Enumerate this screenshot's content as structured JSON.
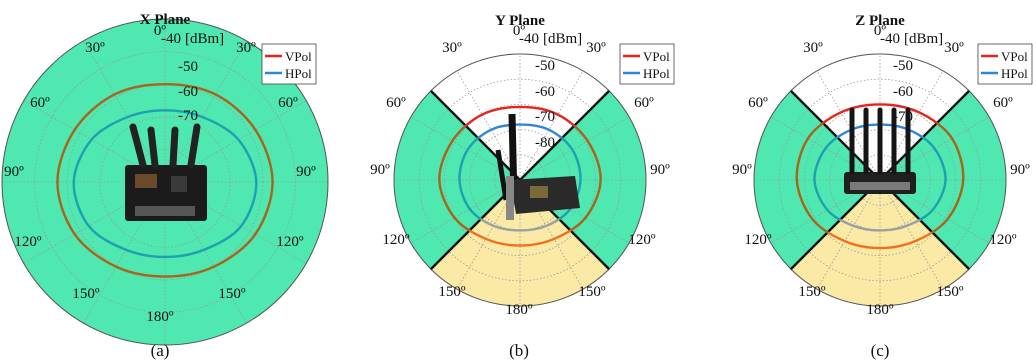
{
  "unit_label": "[dBm]",
  "angle_labels": [
    "0º",
    "30º",
    "30º",
    "60º",
    "60º",
    "90º",
    "90º",
    "120º",
    "120º",
    "150º",
    "150º",
    "180º"
  ],
  "colors": {
    "ring_fill": "#4ee8b0",
    "side_zone": "#4ee8b0",
    "bottom_zone": "#fbe9a6",
    "top_zone": "#ffffff",
    "vpol": "#e8231d",
    "hpol": "#2e86d6",
    "vpol_on_green": "#a8641c",
    "hpol_on_green": "#1f9fb0",
    "vpol_on_yellow": "#f0701e",
    "hpol_on_yellow": "#9aa0a0",
    "grid": "#9a9a9a",
    "sector_line": "#111111"
  },
  "chart_data": [
    {
      "type": "polar-line",
      "title": "X Plane",
      "caption": "(a)",
      "rlim": [
        -90,
        -40
      ],
      "r_ticks": [
        "-40",
        "-50",
        "-60",
        "-70"
      ],
      "angle_unit": "deg",
      "grid": true,
      "legend": {
        "position": "top-right",
        "entries": [
          "VPol",
          "HPol"
        ]
      },
      "zones": "all-green",
      "device_icon": "router-pcb-icon",
      "series": [
        {
          "name": "VPol",
          "angles": [
            0,
            30,
            60,
            90,
            120,
            150,
            180
          ],
          "values": [
            -60,
            -59,
            -58,
            -57,
            -58,
            -60,
            -61
          ]
        },
        {
          "name": "HPol",
          "angles": [
            0,
            30,
            60,
            90,
            120,
            150,
            180
          ],
          "values": [
            -68,
            -67,
            -64,
            -62,
            -63,
            -66,
            -67
          ]
        }
      ]
    },
    {
      "type": "polar-line",
      "title": "Y Plane",
      "caption": "(b)",
      "rlim": [
        -90,
        -40
      ],
      "r_ticks": [
        "-40",
        "-50",
        "-60",
        "-70",
        "-80"
      ],
      "angle_unit": "deg",
      "grid": true,
      "legend": {
        "position": "top-right",
        "entries": [
          "VPol",
          "HPol"
        ]
      },
      "zones": "sectored",
      "device_icon": "pcie-card-icon",
      "series": [
        {
          "name": "VPol",
          "angles": [
            0,
            30,
            60,
            90,
            120,
            150,
            180
          ],
          "values": [
            -61,
            -60,
            -59,
            -58,
            -60,
            -63,
            -64
          ]
        },
        {
          "name": "HPol",
          "angles": [
            0,
            30,
            60,
            90,
            120,
            150,
            180
          ],
          "values": [
            -68,
            -67,
            -66,
            -66,
            -67,
            -69,
            -70
          ]
        }
      ]
    },
    {
      "type": "polar-line",
      "title": "Z Plane",
      "caption": "(c)",
      "rlim": [
        -90,
        -40
      ],
      "r_ticks": [
        "-40",
        "-50",
        "-60",
        "-70"
      ],
      "angle_unit": "deg",
      "grid": true,
      "legend": {
        "position": "top-right",
        "entries": [
          "VPol",
          "HPol"
        ]
      },
      "zones": "sectored",
      "device_icon": "router-box-icon",
      "series": [
        {
          "name": "VPol",
          "angles": [
            0,
            30,
            60,
            90,
            120,
            150,
            180
          ],
          "values": [
            -60,
            -59,
            -57,
            -57,
            -59,
            -62,
            -63
          ]
        },
        {
          "name": "HPol",
          "angles": [
            0,
            30,
            60,
            90,
            120,
            150,
            180
          ],
          "values": [
            -68,
            -67,
            -65,
            -64,
            -66,
            -69,
            -70
          ]
        }
      ]
    }
  ]
}
